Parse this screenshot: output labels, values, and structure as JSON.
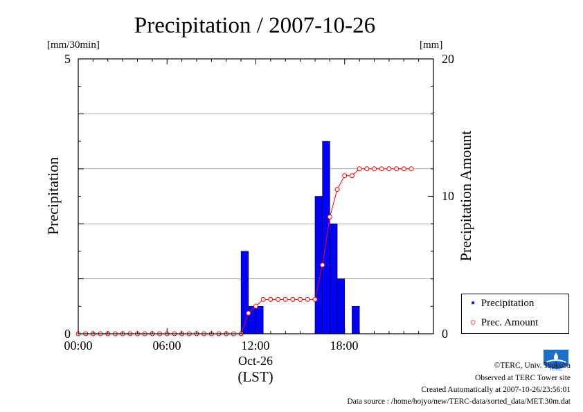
{
  "chart_data": {
    "type": "bar+line",
    "title": "Precipitation / 2007-10-26",
    "left_unit": "[mm/30min]",
    "right_unit": "[mm]",
    "ylabel_left": "Precipitation",
    "ylabel_right": "Precipitation Amount",
    "ylim_left": [
      0,
      5
    ],
    "ylim_right": [
      0,
      20
    ],
    "left_ticks": [
      "0",
      "5"
    ],
    "right_ticks": [
      "0",
      "10",
      "20"
    ],
    "x_ticks": [
      "00:00",
      "06:00",
      "12:00",
      "18:00"
    ],
    "x_date": "Oct-26",
    "x_unit": "(LST)",
    "x_range_hours": [
      0,
      24
    ],
    "grid": "horizontal",
    "bar_width_hours": 0.5,
    "series": [
      {
        "name": "Precipitation",
        "kind": "bar",
        "axis": "left",
        "color": "#0000ff",
        "x_start": [
          11.0,
          11.5,
          12.0,
          16.0,
          16.5,
          17.0,
          17.5,
          18.5
        ],
        "values": [
          1.5,
          0.5,
          0.5,
          2.5,
          3.5,
          2.0,
          1.0,
          0.5
        ]
      },
      {
        "name": "Prec. Amount",
        "kind": "line",
        "axis": "right",
        "color": "#ff0000",
        "x_step_hours": 0.5,
        "values": [
          0,
          0,
          0,
          0,
          0,
          0,
          0,
          0,
          0,
          0,
          0,
          0,
          0,
          0,
          0,
          0,
          0,
          0,
          0,
          0,
          0,
          0,
          0,
          1.5,
          2.0,
          2.5,
          2.5,
          2.5,
          2.5,
          2.5,
          2.5,
          2.5,
          2.5,
          5.0,
          8.5,
          10.5,
          11.5,
          11.5,
          12.0,
          12.0,
          12.0,
          12.0,
          12.0,
          12.0,
          12.0,
          12.0
        ]
      }
    ]
  },
  "legend": {
    "precip_symbol": "▪",
    "precip_label": "Precipitation",
    "amount_symbol": "○",
    "amount_label": "Prec. Amount"
  },
  "footer": {
    "copyright": "©TERC, Univ. Tsukuba",
    "observed": "Observed at TERC Tower site",
    "created": "Created Automatically at 2007-10-26/23:56:01",
    "source": "Data source : /home/hojyo/new/TERC-data/sorted_data/MET.30m.dat"
  },
  "logo": {
    "text": "TERC",
    "color": "#1a6fc9"
  }
}
